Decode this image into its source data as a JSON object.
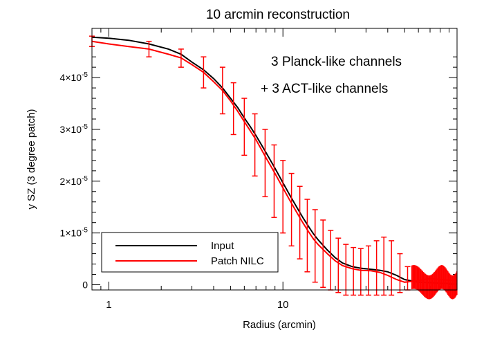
{
  "chart_data": {
    "type": "line",
    "title": "10 arcmin reconstruction",
    "xlabel": "Radius (arcmin)",
    "ylabel": "y SZ (3 degree patch)",
    "xscale": "log",
    "xlim": [
      0.8,
      100
    ],
    "ylim": [
      -1e-06,
      4.95e-05
    ],
    "xticks": [
      {
        "value": 1,
        "label": "1"
      },
      {
        "value": 10,
        "label": "10"
      }
    ],
    "yticks": [
      {
        "value": 0,
        "mant": "0",
        "exp": ""
      },
      {
        "value": 1e-05,
        "mant": "1×10",
        "exp": "-5"
      },
      {
        "value": 2e-05,
        "mant": "2×10",
        "exp": "-5"
      },
      {
        "value": 3e-05,
        "mant": "3×10",
        "exp": "-5"
      },
      {
        "value": 4e-05,
        "mant": "4×10",
        "exp": "-5"
      }
    ],
    "annotations": [
      "3 Planck-like channels",
      "+ 3 ACT-like channels"
    ],
    "legend": {
      "position": "bottom-left",
      "entries": [
        "Input",
        "Patch NILC"
      ]
    },
    "series": [
      {
        "name": "Input",
        "color": "#000000",
        "x": [
          0.8,
          1,
          1.3,
          1.7,
          2.2,
          2.6,
          3,
          3.5,
          4,
          4.5,
          5,
          5.5,
          6,
          6.5,
          7,
          8,
          9,
          10,
          11,
          12,
          13,
          14,
          15,
          16,
          18,
          20,
          22,
          25,
          28,
          32,
          36,
          40,
          45,
          50,
          60,
          70,
          80,
          100
        ],
        "y": [
          4.78e-05,
          4.76e-05,
          4.72e-05,
          4.65e-05,
          4.55e-05,
          4.45e-05,
          4.3e-05,
          4.15e-05,
          3.98e-05,
          3.8e-05,
          3.6e-05,
          3.42e-05,
          3.22e-05,
          3.05e-05,
          2.88e-05,
          2.55e-05,
          2.25e-05,
          1.97e-05,
          1.72e-05,
          1.5e-05,
          1.3e-05,
          1.13e-05,
          9.8e-06,
          8.6e-06,
          6.7e-06,
          5.2e-06,
          4.2e-06,
          3.5e-06,
          3.2e-06,
          3e-06,
          2.8e-06,
          2.5e-06,
          1.8e-06,
          1e-06,
          5e-07,
          4e-07,
          3e-07,
          2e-07
        ]
      },
      {
        "name": "Patch NILC",
        "color": "#ff0000",
        "x": [
          0.8,
          1,
          1.3,
          1.7,
          2.2,
          2.6,
          3,
          3.5,
          4,
          4.5,
          5,
          5.5,
          6,
          6.5,
          7,
          8,
          9,
          10,
          11,
          12,
          13,
          14,
          15,
          16,
          18,
          20,
          22,
          25,
          28,
          32,
          36,
          40,
          45,
          50,
          60,
          70,
          80,
          100
        ],
        "y": [
          4.7e-05,
          4.65e-05,
          4.6e-05,
          4.55e-05,
          4.45e-05,
          4.38e-05,
          4.25e-05,
          4.1e-05,
          3.92e-05,
          3.75e-05,
          3.55e-05,
          3.35e-05,
          3.15e-05,
          2.97e-05,
          2.8e-05,
          2.45e-05,
          2.15e-05,
          1.87e-05,
          1.62e-05,
          1.4e-05,
          1.2e-05,
          1.03e-05,
          8.8e-06,
          7.7e-06,
          6e-06,
          4.6e-06,
          3.7e-06,
          3.1e-06,
          2.8e-06,
          2.7e-06,
          2.4e-06,
          1.8e-06,
          1e-06,
          5e-07,
          8e-07,
          1.2e-06,
          1e-06,
          8e-07
        ]
      }
    ],
    "error_bars": {
      "series": "Patch NILC",
      "color": "#ff0000",
      "x": [
        0.8,
        1.7,
        2.6,
        3.5,
        4.5,
        5.2,
        6,
        6.9,
        7.9,
        8.9,
        10,
        11.2,
        12.5,
        13.8,
        15.3,
        17,
        18.8,
        20.8,
        23,
        25.4,
        28,
        31,
        34.5,
        38,
        42,
        47,
        52
      ],
      "low": [
        4.6e-05,
        4.4e-05,
        4.2e-05,
        3.8e-05,
        3.3e-05,
        2.9e-05,
        2.5e-05,
        2.1e-05,
        1.7e-05,
        1.3e-05,
        1e-05,
        7.5e-06,
        5e-06,
        2.5e-06,
        5e-07,
        -5e-07,
        -1e-06,
        -1.5e-06,
        -2e-06,
        -2e-06,
        -2e-06,
        -2e-06,
        -2e-06,
        -2e-06,
        -2e-06,
        -1.5e-06,
        -1e-06
      ],
      "high": [
        4.8e-05,
        4.7e-05,
        4.55e-05,
        4.4e-05,
        4.2e-05,
        3.9e-05,
        3.6e-05,
        3.3e-05,
        3e-05,
        2.7e-05,
        2.4e-05,
        2.15e-05,
        1.9e-05,
        1.65e-05,
        1.45e-05,
        1.25e-05,
        1.05e-05,
        9e-06,
        7.8e-06,
        7.2e-06,
        7e-06,
        7.5e-06,
        8.5e-06,
        9.2e-06,
        8.5e-06,
        6e-06,
        3.5e-06
      ]
    }
  }
}
